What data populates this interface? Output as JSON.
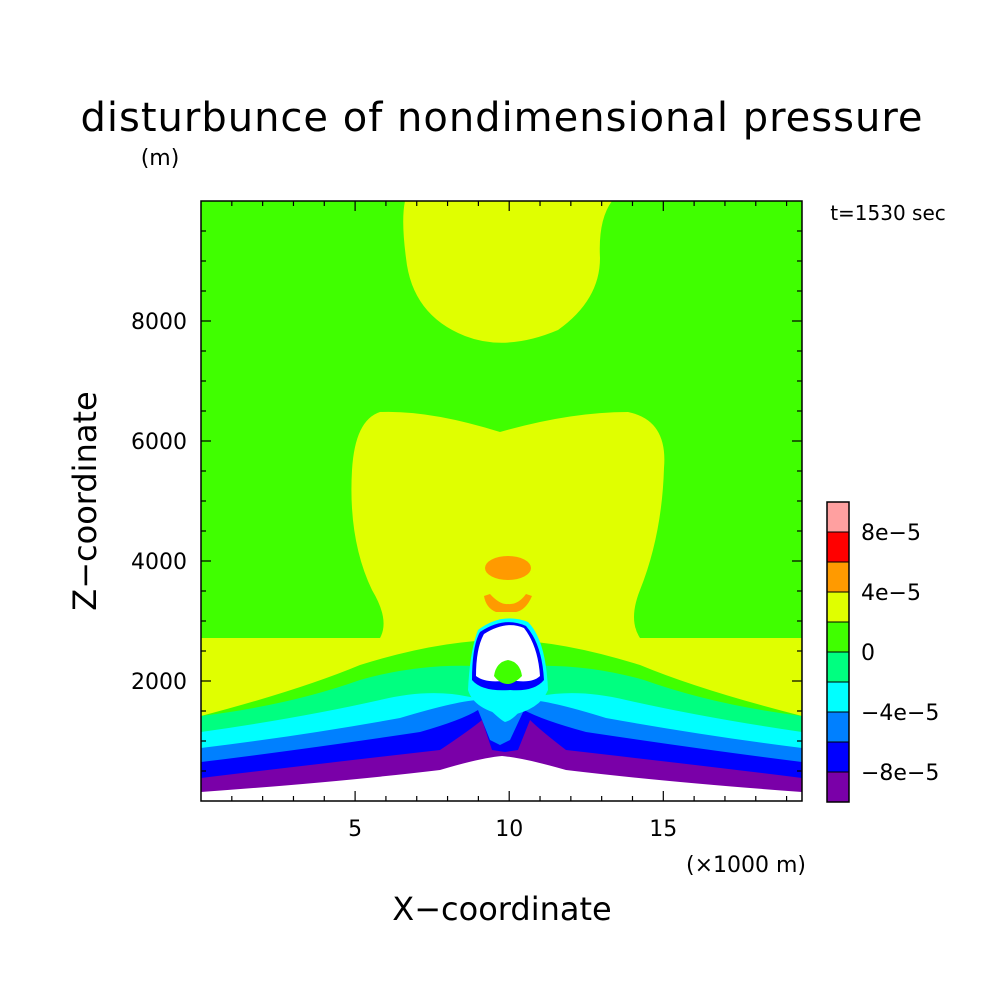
{
  "chart_data": {
    "type": "heatmap",
    "title": "disturbunce of nondimensional pressure",
    "ylabel_unit": "(m)",
    "xlabel": "X−coordinate",
    "xlabel_unit": "(×1000 m)",
    "ylabel": "Z−coordinate",
    "time_label": "t=1530 sec",
    "xlim": [
      0,
      19.5
    ],
    "ylim": [
      0,
      10000
    ],
    "x_ticks": [
      {
        "value": 5,
        "label": "5"
      },
      {
        "value": 10,
        "label": "10"
      },
      {
        "value": 15,
        "label": "15"
      }
    ],
    "y_ticks": [
      {
        "value": 2000,
        "label": "2000"
      },
      {
        "value": 4000,
        "label": "4000"
      },
      {
        "value": 6000,
        "label": "6000"
      },
      {
        "value": 8000,
        "label": "8000"
      }
    ],
    "colorbar": {
      "levels": [
        {
          "color": "#7a00a8"
        },
        {
          "color": "#0000ff"
        },
        {
          "color": "#0080ff"
        },
        {
          "color": "#00ffff"
        },
        {
          "color": "#00ff80"
        },
        {
          "color": "#40ff00"
        },
        {
          "color": "#e0ff00"
        },
        {
          "color": "#ff9a00"
        },
        {
          "color": "#ff0000"
        },
        {
          "color": "#ffa0a0"
        }
      ],
      "labels": [
        "−8e−5",
        "−4e−5",
        "0",
        "4e−5",
        "8e−5"
      ]
    },
    "background_level_color": "#40ff00"
  }
}
